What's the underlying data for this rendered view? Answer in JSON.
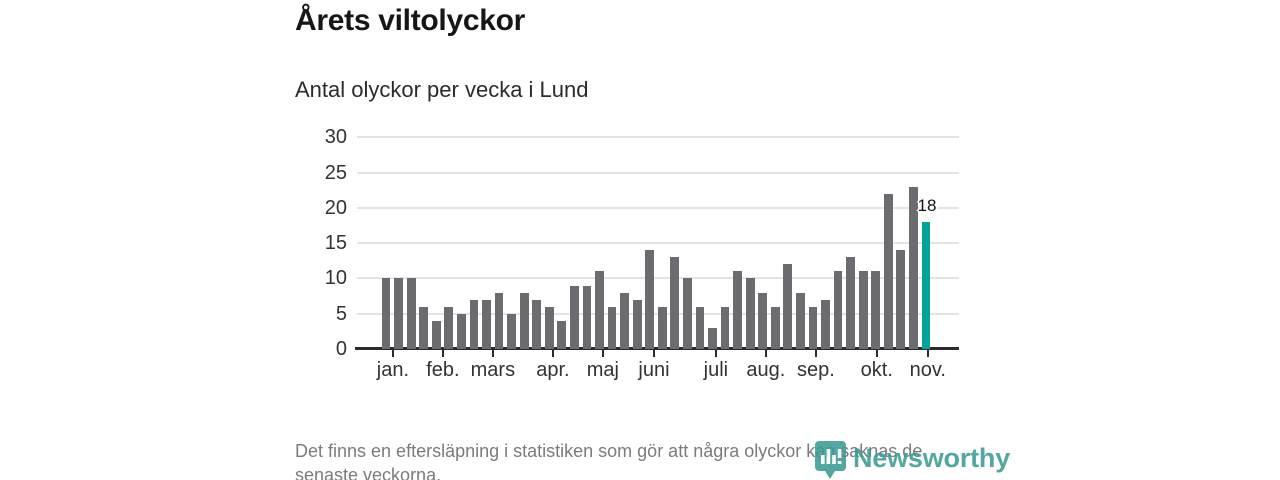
{
  "header": {
    "title": "Årets viltolyckor",
    "subtitle": "Antal olyckor per vecka i Lund"
  },
  "chart_data": {
    "type": "bar",
    "title": "Årets viltolyckor",
    "subtitle": "Antal olyckor per vecka i Lund",
    "x_unit": "vecka",
    "ylabel": "",
    "xlabel": "",
    "ylim": [
      0,
      30
    ],
    "yticks": [
      0,
      5,
      10,
      15,
      20,
      25,
      30
    ],
    "grid": "horizontal",
    "values": [
      10,
      10,
      10,
      6,
      4,
      6,
      5,
      7,
      7,
      8,
      5,
      8,
      7,
      6,
      4,
      9,
      9,
      11,
      6,
      8,
      7,
      14,
      6,
      13,
      10,
      6,
      3,
      6,
      11,
      10,
      8,
      6,
      12,
      8,
      6,
      7,
      11,
      13,
      11,
      11,
      22,
      14,
      23,
      18
    ],
    "highlight_last": true,
    "highlight_label": "18",
    "months": [
      {
        "label": "jan.",
        "week": 1.55
      },
      {
        "label": "feb.",
        "week": 5.53
      },
      {
        "label": "mars",
        "week": 9.51
      },
      {
        "label": "apr.",
        "week": 14.29
      },
      {
        "label": "maj",
        "week": 18.27
      },
      {
        "label": "juni",
        "week": 22.34
      },
      {
        "label": "juli",
        "week": 27.27
      },
      {
        "label": "aug.",
        "week": 31.25
      },
      {
        "label": "sep.",
        "week": 35.23
      },
      {
        "label": "okt.",
        "week": 40.08
      },
      {
        "label": "nov.",
        "week": 44.14
      }
    ],
    "colors": {
      "bar": "#6b6b70",
      "highlight": "#00a49c",
      "grid": "#e4e4e4",
      "axis": "#2b2b2b",
      "text": "#333333"
    }
  },
  "footer": {
    "note": "Det finns en eftersläpning i statistiken som gör att några olyckor kan saknas de senaste veckorna.",
    "brand": "Newsworthy",
    "brand_color": "#3d9b94"
  }
}
